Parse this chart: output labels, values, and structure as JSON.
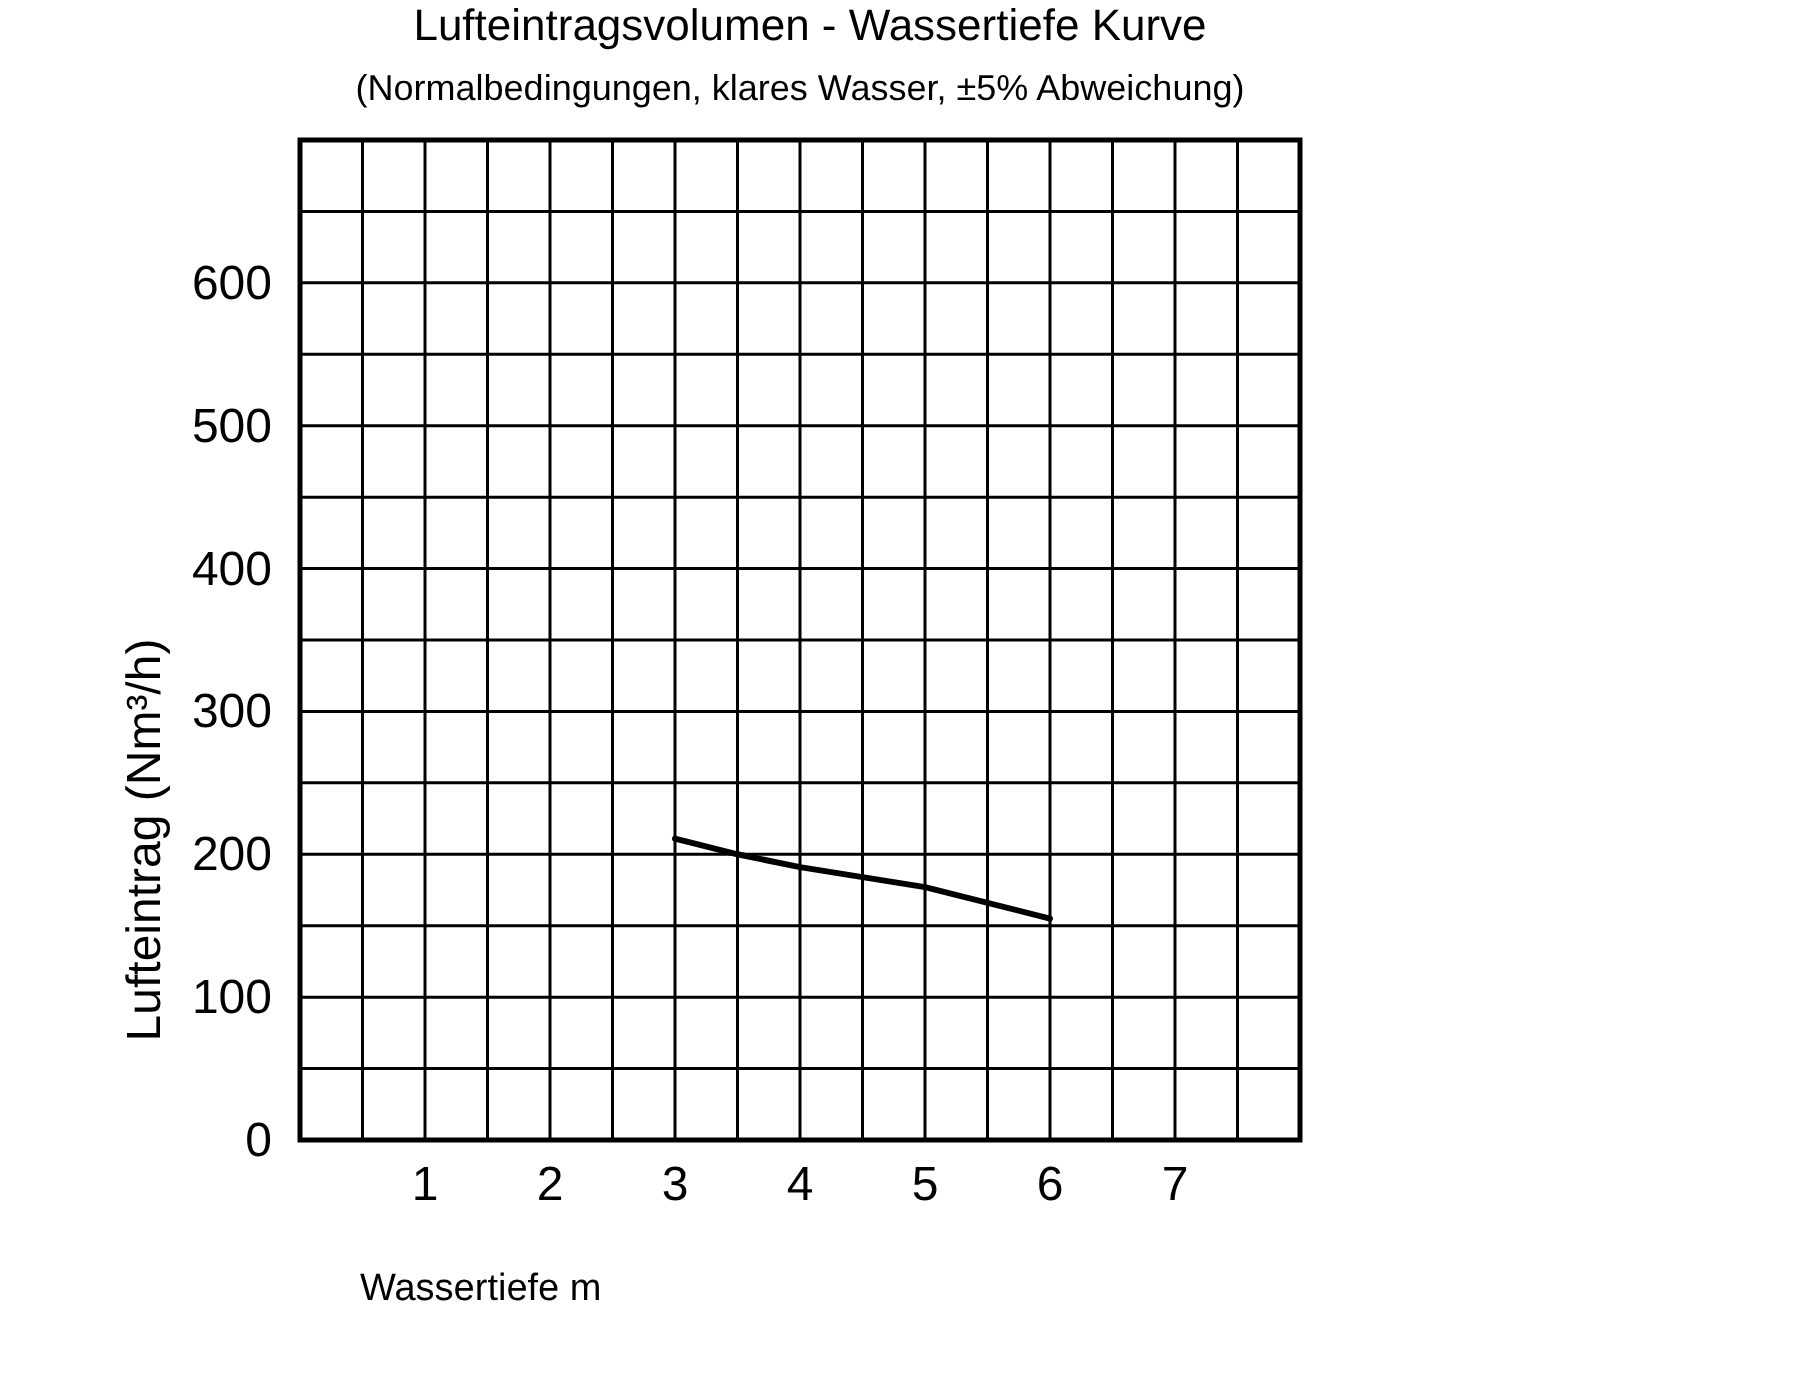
{
  "chart_data": {
    "type": "line",
    "title": "Lufteintragsvolumen - Wassertiefe Kurve",
    "subtitle": "(Normalbedingungen, klares Wasser, ±5% Abweichung)",
    "xlabel": "Wassertiefe m",
    "ylabel": "Lufteintrag (Nm³/h)",
    "x": [
      3,
      3.5,
      4,
      5,
      6
    ],
    "series": [
      {
        "color": "#000000",
        "values": [
          211,
          200,
          191,
          177,
          155
        ]
      }
    ],
    "xlim": [
      0,
      8
    ],
    "xticks": [
      {
        "value": 0.5,
        "label": null
      },
      1,
      {
        "value": 1.5,
        "label": null
      },
      2,
      {
        "value": 2.5,
        "label": null
      },
      3,
      {
        "value": 3.5,
        "label": null
      },
      4,
      {
        "value": 4.5,
        "label": null
      },
      5,
      {
        "value": 5.5,
        "label": null
      },
      6,
      {
        "value": 6.5,
        "label": null
      },
      7,
      {
        "value": 7.5,
        "label": null
      }
    ],
    "ylim": [
      0,
      700
    ],
    "yticks": [
      0,
      {
        "value": 50,
        "label": null
      },
      100,
      {
        "value": 150,
        "label": null
      },
      200,
      {
        "value": 250,
        "label": null
      },
      300,
      {
        "value": 350,
        "label": null
      },
      400,
      {
        "value": 450,
        "label": null
      },
      500,
      {
        "value": 550,
        "label": null
      },
      600,
      {
        "value": 650,
        "label": null
      }
    ],
    "grid": true,
    "line_style": "solid",
    "marker": "none"
  }
}
